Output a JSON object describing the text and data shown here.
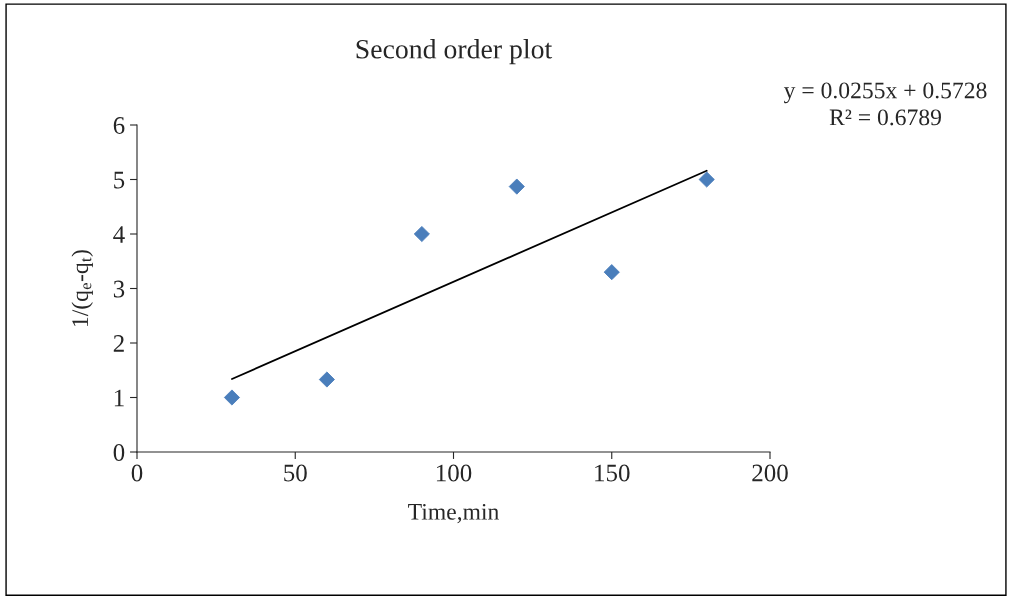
{
  "chart_data": {
    "type": "scatter",
    "title": "Second order plot",
    "xlabel": "Time,min",
    "ylabel": "1/(q$_{e}$-q$_{t}$)",
    "x": [
      30,
      60,
      90,
      120,
      150,
      180
    ],
    "series": [
      {
        "color": "#4a7ebb",
        "marker": "diamond",
        "values": [
          1.0,
          1.33,
          4.0,
          4.87,
          3.3,
          5.0
        ]
      },
      {
        "type": "line",
        "color": "#000000",
        "x": [
          30,
          180
        ],
        "values": [
          1.34,
          5.16
        ]
      }
    ],
    "xlim": [
      0,
      200
    ],
    "xticks": [
      0,
      50,
      100,
      150,
      200
    ],
    "ylim": [
      0,
      6
    ],
    "yticks": [
      0,
      1,
      2,
      3,
      4,
      5,
      6
    ],
    "annotations": [
      "y = 0.0255x + 0.5728",
      "R² = 0.6789"
    ],
    "grid": false,
    "legend": false
  }
}
